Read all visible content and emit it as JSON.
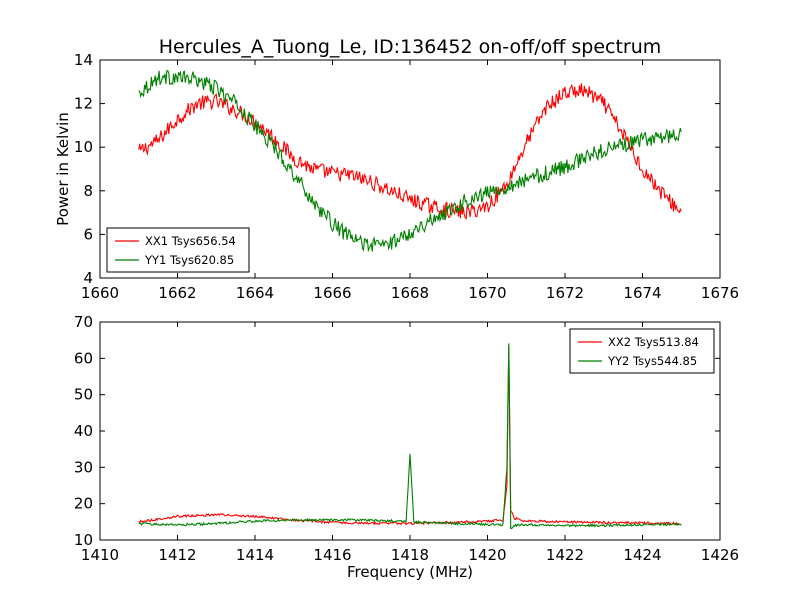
{
  "title": "Hercules_A_Tuong_Le, ID:136452 on-off/off spectrum",
  "xlabel": "Frequency (MHz)",
  "chart_data": [
    {
      "type": "line",
      "ylabel": "Power in Kelvin",
      "xlim": [
        1660,
        1676
      ],
      "ylim": [
        4,
        14
      ],
      "xticks": [
        "1660",
        "1662",
        "1664",
        "1666",
        "1668",
        "1670",
        "1672",
        "1674",
        "1676"
      ],
      "yticks": [
        "4",
        "6",
        "8",
        "10",
        "12",
        "14"
      ],
      "legend_position": "lower-left",
      "grid": false,
      "series": [
        {
          "name": "XX1 Tsys656.54",
          "color": "#ff0000",
          "x": [
            1661.0,
            1661.5,
            1662.0,
            1662.5,
            1663.0,
            1663.5,
            1664.0,
            1664.5,
            1665.0,
            1665.5,
            1666.0,
            1666.5,
            1667.0,
            1667.5,
            1668.0,
            1668.5,
            1669.0,
            1669.5,
            1670.0,
            1670.5,
            1671.0,
            1671.5,
            1672.0,
            1672.5,
            1673.0,
            1673.5,
            1674.0,
            1674.5,
            1675.0
          ],
          "y": [
            9.8,
            10.3,
            11.3,
            12.0,
            12.1,
            11.7,
            11.2,
            10.4,
            9.5,
            9.0,
            8.8,
            8.7,
            8.4,
            8.0,
            7.6,
            7.3,
            7.1,
            7.0,
            7.3,
            8.3,
            10.2,
            11.8,
            12.5,
            12.6,
            12.0,
            10.6,
            9.0,
            7.9,
            7.0
          ]
        },
        {
          "name": "YY1 Tsys620.85",
          "color": "#008000",
          "x": [
            1661.0,
            1661.5,
            1662.0,
            1662.5,
            1663.0,
            1663.5,
            1664.0,
            1664.5,
            1665.0,
            1665.5,
            1666.0,
            1666.5,
            1667.0,
            1667.5,
            1668.0,
            1668.5,
            1669.0,
            1669.5,
            1670.0,
            1670.5,
            1671.0,
            1671.5,
            1672.0,
            1672.5,
            1673.0,
            1673.5,
            1674.0,
            1674.5,
            1675.0
          ],
          "y": [
            12.5,
            13.2,
            13.2,
            13.1,
            12.7,
            12.0,
            11.0,
            10.0,
            8.8,
            7.5,
            6.5,
            5.8,
            5.5,
            5.6,
            6.1,
            6.6,
            7.1,
            7.6,
            7.9,
            8.2,
            8.5,
            8.8,
            9.1,
            9.5,
            9.9,
            10.1,
            10.3,
            10.5,
            10.6
          ]
        }
      ]
    },
    {
      "type": "line",
      "xlabel": "Frequency (MHz)",
      "xlim": [
        1410,
        1426
      ],
      "ylim": [
        10,
        70
      ],
      "xticks": [
        "1410",
        "1412",
        "1414",
        "1416",
        "1418",
        "1420",
        "1422",
        "1424",
        "1426"
      ],
      "yticks": [
        "10",
        "20",
        "30",
        "40",
        "50",
        "60",
        "70"
      ],
      "legend_position": "top-right",
      "grid": false,
      "series": [
        {
          "name": "XX2 Tsys513.84",
          "color": "#ff0000",
          "x": [
            1411.0,
            1412.0,
            1413.0,
            1414.0,
            1415.0,
            1416.0,
            1417.0,
            1418.0,
            1419.0,
            1420.0,
            1420.4,
            1420.5,
            1420.55,
            1420.6,
            1420.7,
            1421.0,
            1422.0,
            1423.0,
            1424.0,
            1425.0
          ],
          "y": [
            15.0,
            16.5,
            17.0,
            16.5,
            15.5,
            14.8,
            14.6,
            14.6,
            14.8,
            15.2,
            15.5,
            25.0,
            63.5,
            18.0,
            16.0,
            15.2,
            15.0,
            14.8,
            14.7,
            14.5
          ]
        },
        {
          "name": "YY2 Tsys544.85",
          "color": "#008000",
          "x": [
            1411.0,
            1412.0,
            1413.0,
            1414.0,
            1415.0,
            1416.0,
            1417.0,
            1417.9,
            1418.0,
            1418.1,
            1419.0,
            1420.0,
            1420.4,
            1420.5,
            1420.55,
            1420.6,
            1420.7,
            1421.0,
            1422.0,
            1423.0,
            1424.0,
            1425.0
          ],
          "y": [
            14.5,
            14.2,
            14.5,
            15.2,
            15.5,
            15.6,
            15.4,
            15.2,
            33.5,
            15.0,
            14.6,
            14.3,
            14.2,
            30.0,
            64.0,
            13.0,
            14.0,
            14.2,
            14.0,
            14.0,
            14.2,
            14.3
          ]
        }
      ]
    }
  ]
}
